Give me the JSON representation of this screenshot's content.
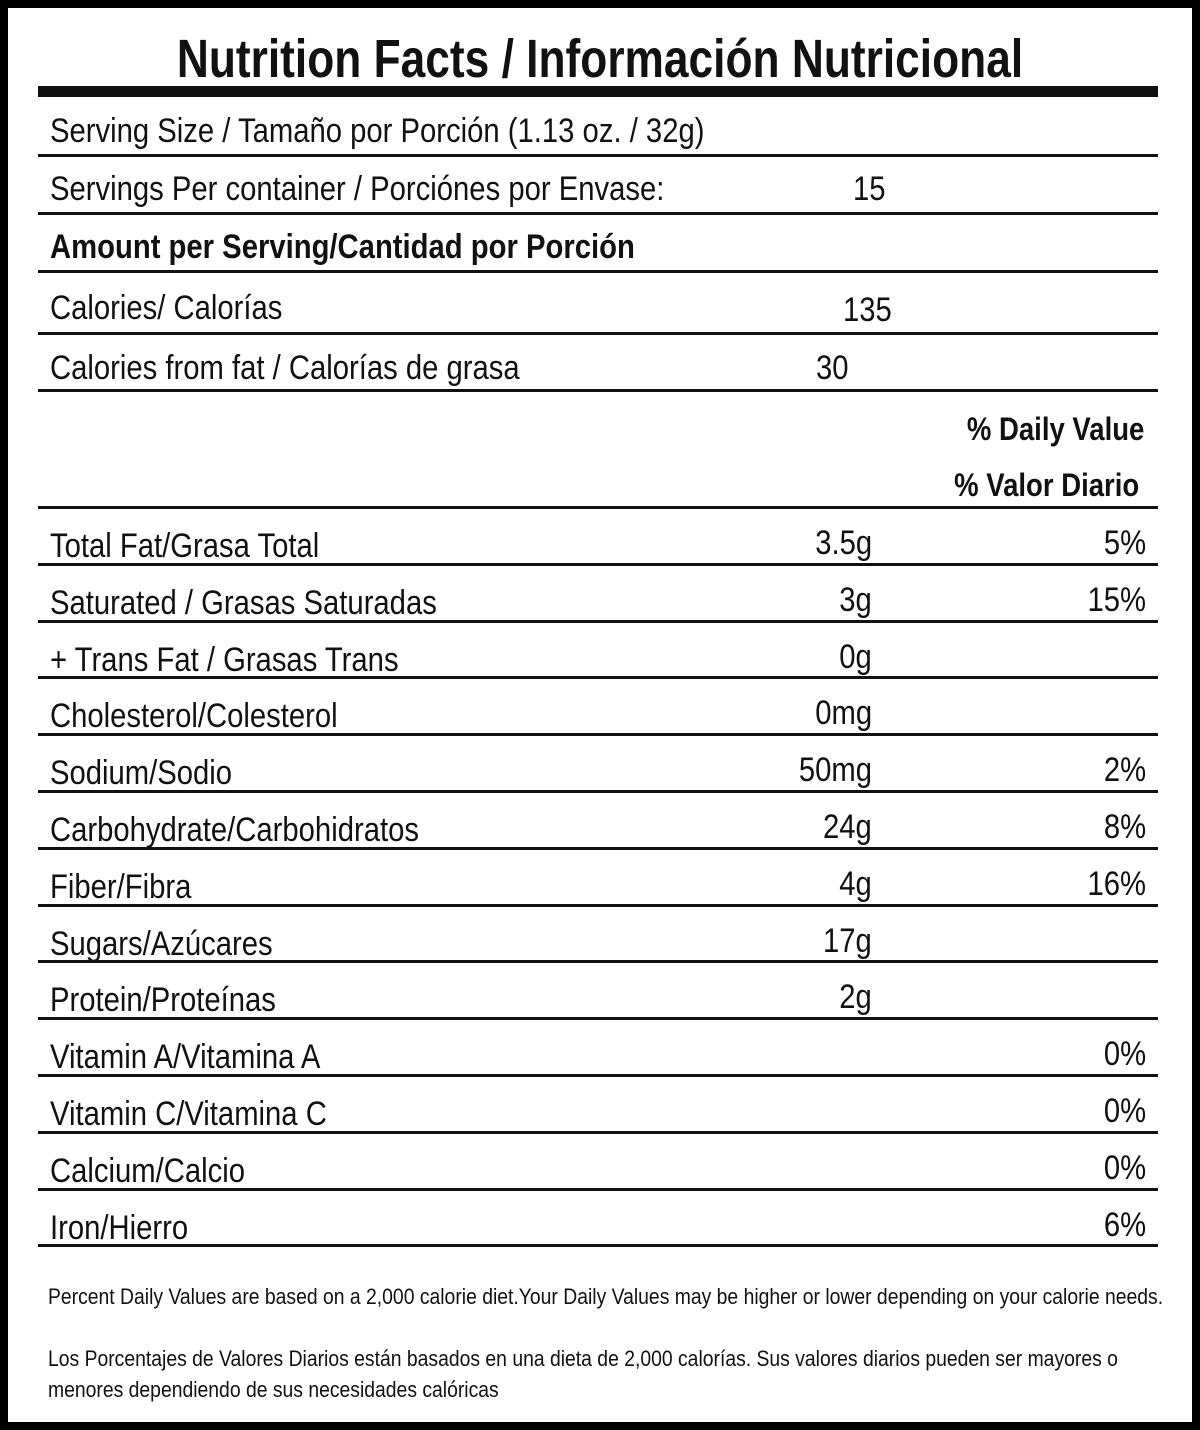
{
  "title": "Nutrition Facts / Información Nutricional",
  "serving_size": "Serving Size / Tamaño por Porción (1.13 oz. / 32g)",
  "servings_per_container": {
    "label": "Servings Per container / Porciónes por Envase:",
    "value": "15"
  },
  "amount_header": "Amount per Serving/Cantidad por Porción",
  "calories": {
    "label": "Calories/ Calorías",
    "value": "135"
  },
  "calories_from_fat": {
    "label": "Calories from fat / Calorías de grasa",
    "value": "30"
  },
  "daily_value_header": [
    "% Daily Value",
    "% Valor Diario"
  ],
  "nutrients": [
    {
      "name": "Total Fat/Grasa Total",
      "amount": "3.5g",
      "daily_value": "5%"
    },
    {
      "name": "Saturated / Grasas Saturadas",
      "amount": "3g",
      "daily_value": "15%"
    },
    {
      "name": "+ Trans Fat / Grasas Trans",
      "amount": "0g"
    },
    {
      "name": "Cholesterol/Colesterol",
      "amount": "0mg"
    },
    {
      "name": "Sodium/Sodio",
      "amount": "50mg",
      "daily_value": "2%"
    },
    {
      "name": "Carbohydrate/Carbohidratos",
      "amount": "24g",
      "daily_value": "8%"
    },
    {
      "name": "Fiber/Fibra",
      "amount": "4g",
      "daily_value": "16%"
    },
    {
      "name": "Sugars/Azúcares",
      "amount": "17g"
    },
    {
      "name": "Protein/Proteínas",
      "amount": "2g"
    },
    {
      "name": "Vitamin A/Vitamina A",
      "daily_value": "0%"
    },
    {
      "name": "Vitamin C/Vitamina C",
      "daily_value": "0%"
    },
    {
      "name": "Calcium/Calcio",
      "daily_value": "0%"
    },
    {
      "name": "Iron/Hierro",
      "daily_value": "6%"
    }
  ],
  "footnote": [
    "Percent Daily Values are based on a 2,000 calorie diet.Your Daily Values may be higher or lower depending on your calorie needs.",
    "Los Porcentajes de Valores Diarios están basados en una dieta de 2,000 calorías. Sus valores diarios pueden ser mayores o menores dependiendo de sus necesidades calóricas"
  ]
}
